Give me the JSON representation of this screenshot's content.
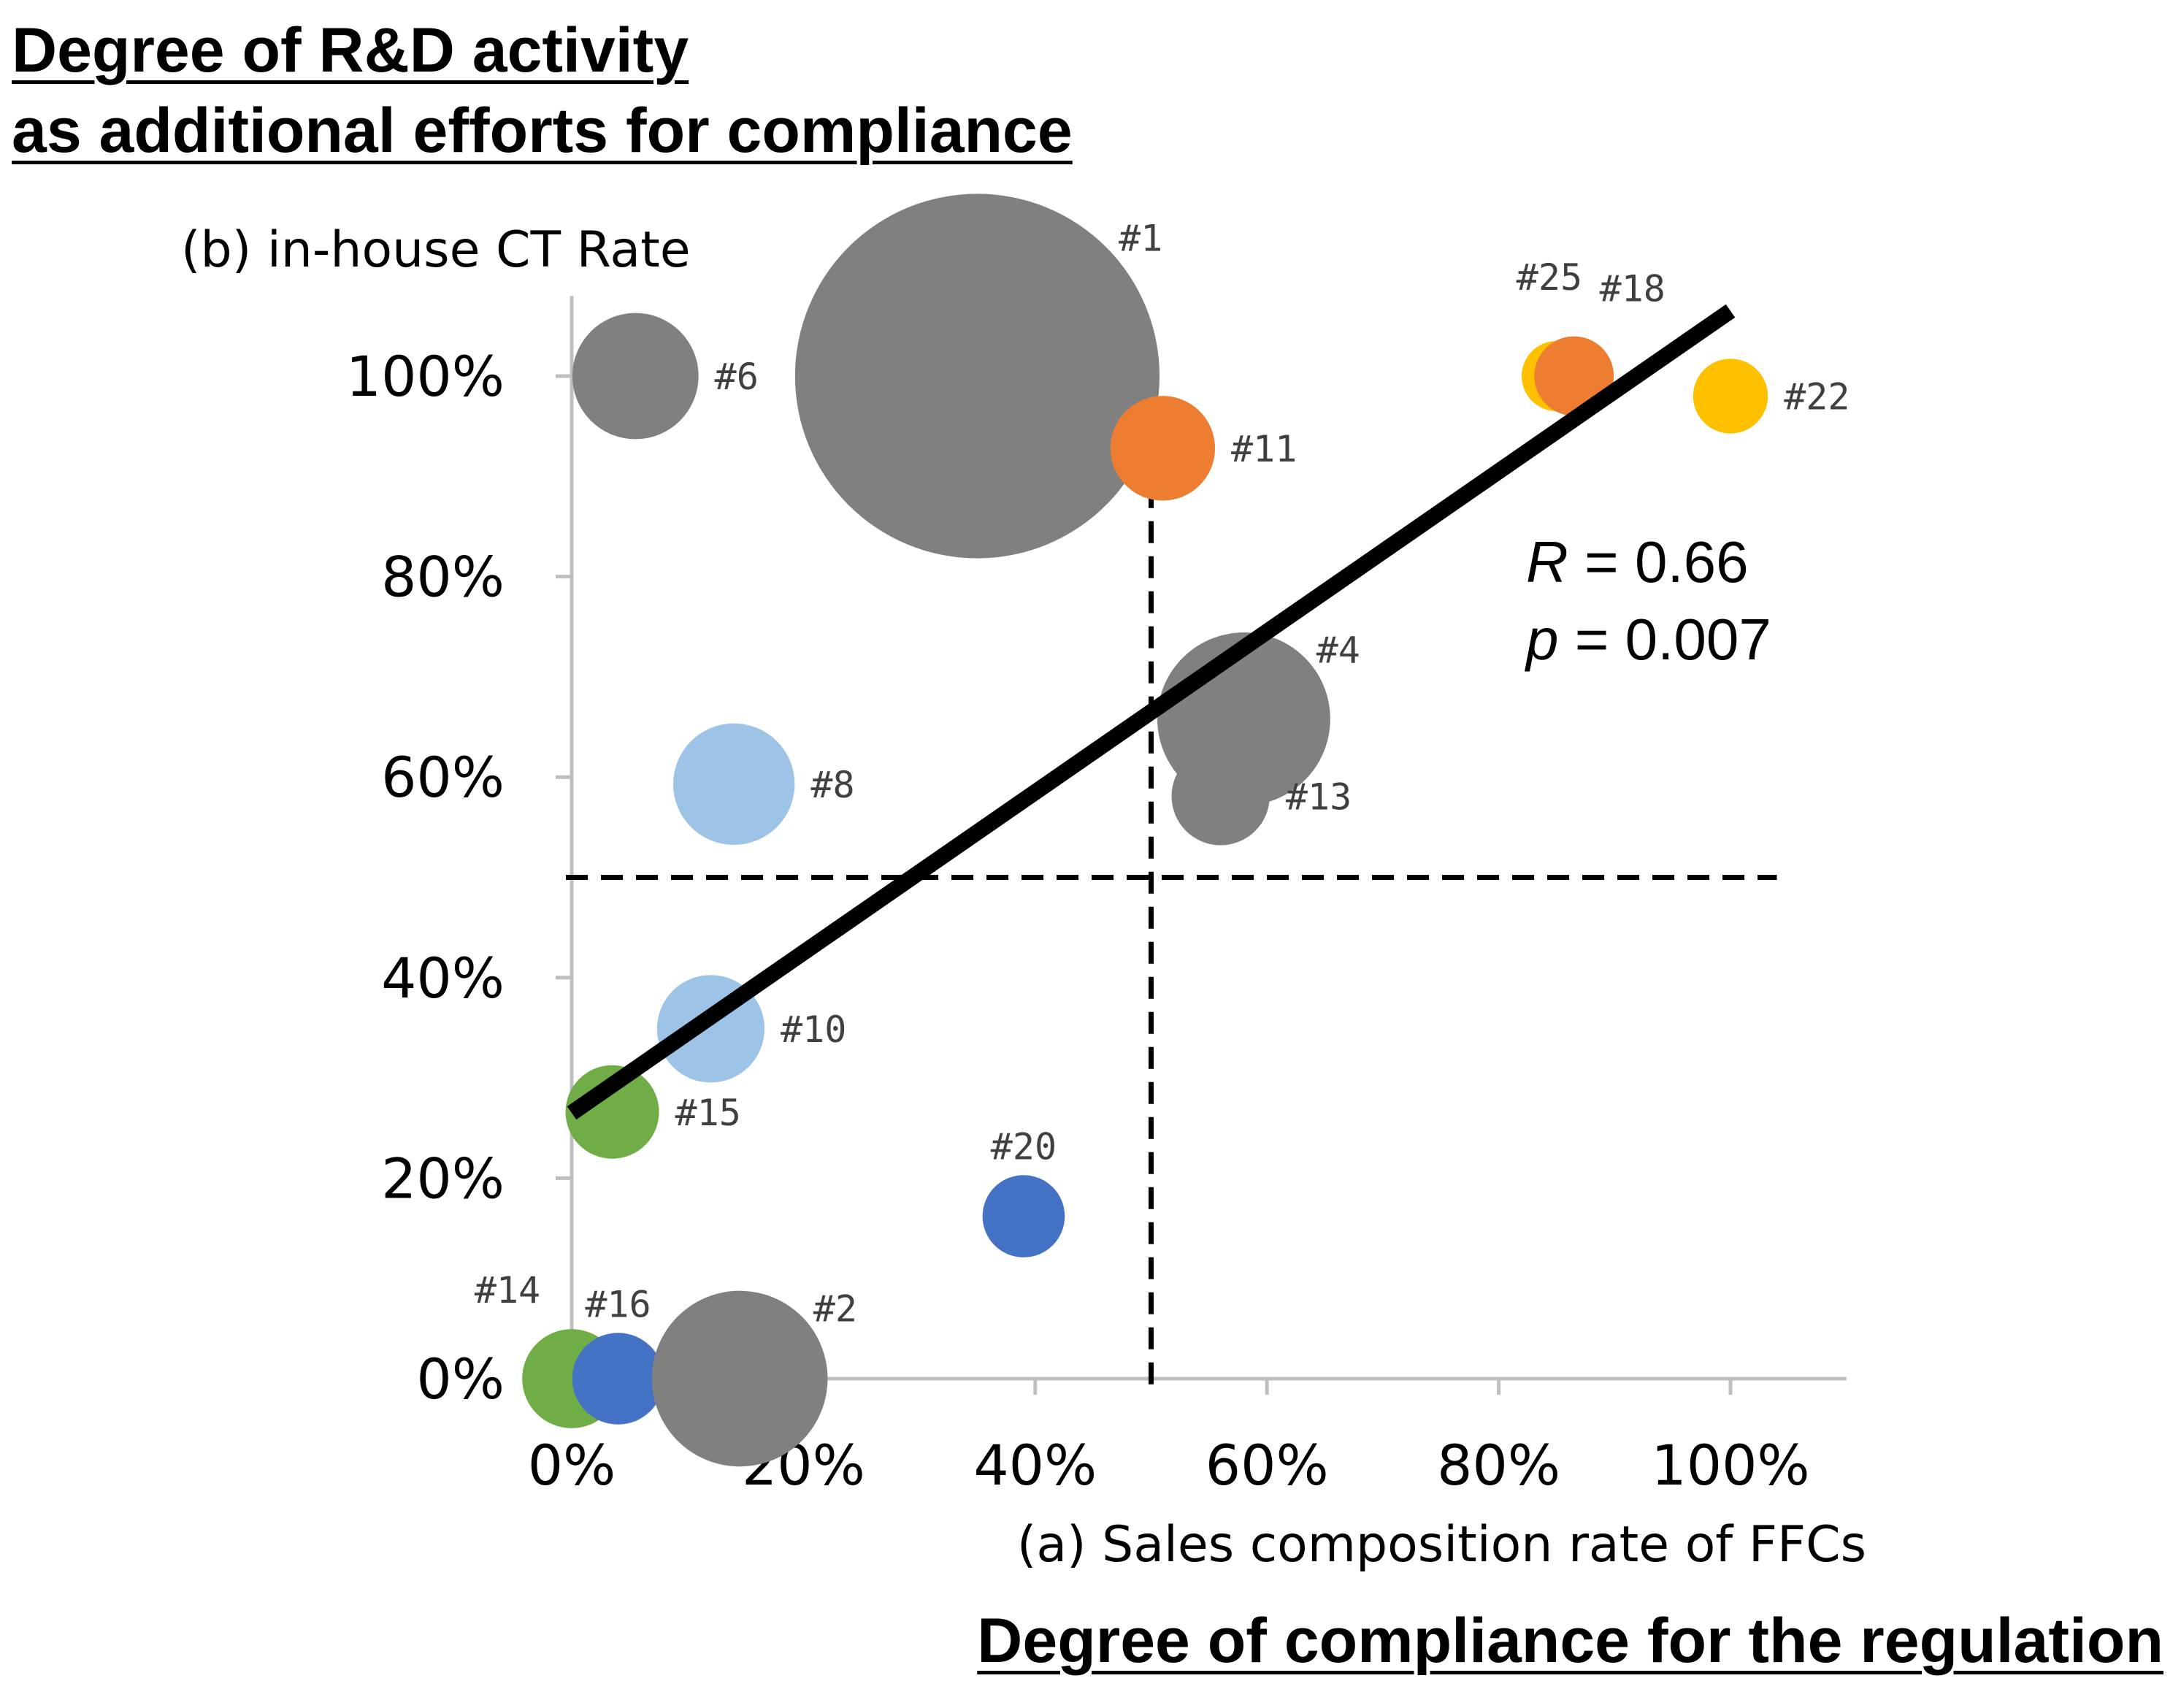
{
  "headings": {
    "top_line1": "Degree of R&D activity",
    "top_line2": "as additional efforts for compliance",
    "bottom": "Degree of compliance for the regulation"
  },
  "chart_data": {
    "type": "scatter",
    "subtype": "bubble",
    "title": "",
    "xlabel": "(a) Sales composition rate of FFCs",
    "ylabel": "(b) in-house CT Rate",
    "xlim": [
      0,
      110
    ],
    "ylim": [
      -4,
      108
    ],
    "x_ticks": [
      0,
      20,
      40,
      60,
      80,
      100
    ],
    "y_ticks": [
      0,
      20,
      40,
      60,
      80,
      100
    ],
    "x_tick_labels": [
      "0%",
      "20%",
      "40%",
      "60%",
      "80%",
      "100%"
    ],
    "y_tick_labels": [
      "0%",
      "20%",
      "40%",
      "60%",
      "80%",
      "100%"
    ],
    "grid": false,
    "reference_lines": {
      "x": 50,
      "y": 50,
      "style": "dashed"
    },
    "trendline": {
      "x": [
        0,
        100
      ],
      "y": [
        26.5,
        106.5
      ]
    },
    "stats": {
      "r_symbol": "R",
      "r_text": " = 0.66",
      "p_symbol": "p",
      "p_text": " = 0.007"
    },
    "points": [
      {
        "label": "#1",
        "x": 35,
        "y": 100,
        "size": 3.9,
        "color": "#808080",
        "label_position": "upper-right"
      },
      {
        "label": "#6",
        "x": 5.5,
        "y": 100,
        "size": 1.35,
        "color": "#808080",
        "label_position": "right"
      },
      {
        "label": "#11",
        "x": 51,
        "y": 92.8,
        "size": 1.12,
        "color": "#ED7D31",
        "label_position": "right"
      },
      {
        "label": "#25",
        "x": 85,
        "y": 100,
        "size": 0.75,
        "color": "#FFC000",
        "label_position": "above-left"
      },
      {
        "label": "#18",
        "x": 86.5,
        "y": 100,
        "size": 0.85,
        "color": "#ED7D31",
        "label_position": "above-right"
      },
      {
        "label": "#22",
        "x": 100,
        "y": 98,
        "size": 0.8,
        "color": "#FFC000",
        "label_position": "right"
      },
      {
        "label": "#4",
        "x": 58,
        "y": 65.8,
        "size": 1.85,
        "color": "#808080",
        "label_position": "upper-right"
      },
      {
        "label": "#13",
        "x": 56,
        "y": 58.1,
        "size": 1.05,
        "color": "#808080",
        "label_position": "right"
      },
      {
        "label": "#8",
        "x": 14,
        "y": 59.3,
        "size": 1.3,
        "color": "#9DC3E6",
        "label_position": "right"
      },
      {
        "label": "#10",
        "x": 12,
        "y": 34.9,
        "size": 1.15,
        "color": "#9DC3E6",
        "label_position": "right"
      },
      {
        "label": "#15",
        "x": 3.5,
        "y": 26.6,
        "size": 1.0,
        "color": "#70AD47",
        "label_position": "right"
      },
      {
        "label": "#20",
        "x": 39,
        "y": 16.2,
        "size": 0.88,
        "color": "#4472C4",
        "label_position": "above"
      },
      {
        "label": "#14",
        "x": 0,
        "y": 0,
        "size": 1.06,
        "color": "#70AD47",
        "label_position": "upper-left"
      },
      {
        "label": "#16",
        "x": 4,
        "y": 0,
        "size": 0.98,
        "color": "#4472C4",
        "label_position": "above"
      },
      {
        "label": "#2",
        "x": 14.5,
        "y": 0,
        "size": 1.88,
        "color": "#808080",
        "label_position": "upper-right"
      }
    ]
  },
  "colors": {
    "axis": "#BFBFBF",
    "reference_line": "#000000",
    "trendline": "#000000"
  }
}
